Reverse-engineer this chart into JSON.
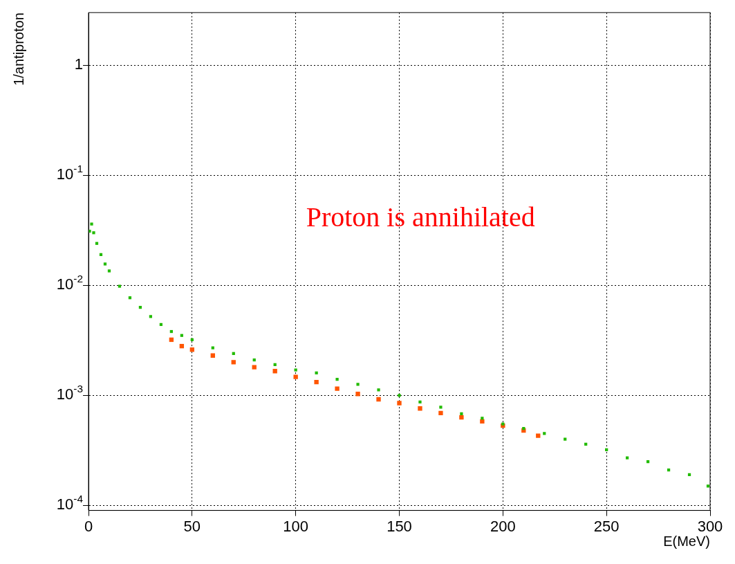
{
  "chart_data": {
    "type": "scatter",
    "xlabel": "E(MeV)",
    "ylabel": "1/antiproton",
    "annotations": [
      "Proton is annihilated"
    ],
    "xlim": [
      0,
      300
    ],
    "xticks": [
      0,
      50,
      100,
      150,
      200,
      250,
      300
    ],
    "ylim": [
      9e-05,
      3
    ],
    "yticks": [
      {
        "value": 0.0001,
        "label": "10$^{-4}$"
      },
      {
        "value": 0.001,
        "label": "10$^{-3}$"
      },
      {
        "value": 0.01,
        "label": "10$^{-2}$"
      },
      {
        "value": 0.1,
        "label": "10$^{-1}$"
      },
      {
        "value": 1,
        "label": "1"
      }
    ],
    "log": "y",
    "grid": true,
    "marker": "square",
    "legend": false,
    "series": [
      {
        "color": "#22bb00",
        "x": [
          0.5,
          1.5,
          2.5,
          4,
          6,
          8,
          10,
          15,
          20,
          25,
          30,
          35,
          40,
          45,
          50,
          60,
          70,
          80,
          90,
          100,
          110,
          120,
          130,
          140,
          150,
          160,
          170,
          180,
          190,
          200,
          210,
          220,
          230,
          240,
          250,
          260,
          270,
          280,
          290,
          299
        ],
        "values": [
          0.031,
          0.036,
          0.03,
          0.024,
          0.019,
          0.0156,
          0.0135,
          0.0098,
          0.0077,
          0.0063,
          0.0052,
          0.0044,
          0.0038,
          0.0035,
          0.0032,
          0.0027,
          0.0024,
          0.0021,
          0.0019,
          0.0017,
          0.0016,
          0.0014,
          0.00126,
          0.00112,
          0.001,
          0.00087,
          0.00078,
          0.00068,
          0.00062,
          0.00055,
          0.0005,
          0.00045,
          0.0004,
          0.00036,
          0.00032,
          0.00027,
          0.00025,
          0.00021,
          0.00019,
          0.00015
        ]
      },
      {
        "color": "#ff5500",
        "x": [
          40,
          45,
          50,
          60,
          70,
          80,
          90,
          100,
          110,
          120,
          130,
          140,
          150,
          160,
          170,
          180,
          190,
          200,
          210,
          217
        ],
        "values": [
          0.0032,
          0.0028,
          0.0026,
          0.0023,
          0.002,
          0.0018,
          0.00166,
          0.00147,
          0.00132,
          0.00115,
          0.00103,
          0.00092,
          0.00085,
          0.00076,
          0.00069,
          0.00063,
          0.00058,
          0.00053,
          0.00048,
          0.00043
        ]
      }
    ]
  }
}
